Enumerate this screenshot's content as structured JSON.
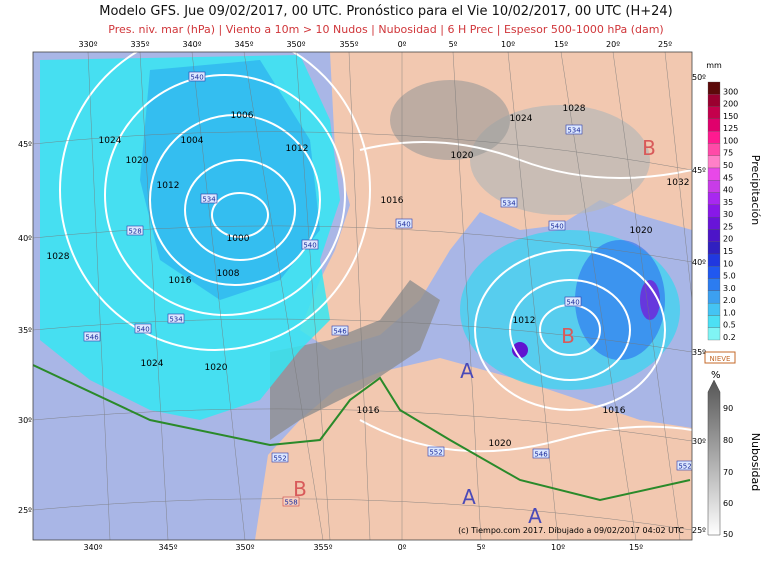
{
  "header": {
    "title": "Modelo GFS. Jue 09/02/2017, 00 UTC. Pronóstico para el Vie 10/02/2017, 00 UTC (H+24)",
    "subtitle": "Pres. niv. mar (hPa) | Viento a 10m > 10 Nudos | Nubosidad | 6 H Prec | Espesor 500-1000 hPa (dam)"
  },
  "map": {
    "top_longitudes": [
      "330º",
      "335º",
      "340º",
      "345º",
      "350º",
      "355º",
      "0º",
      "5º",
      "10º",
      "15º",
      "20º",
      "25º"
    ],
    "bottom_longitudes": [
      "340º",
      "345º",
      "350º",
      "355º",
      "0º",
      "5º",
      "10º",
      "15º"
    ],
    "left_latitudes": [
      "45º",
      "40º",
      "35º",
      "30º",
      "25º"
    ],
    "right_latitudes": [
      "50º",
      "45º",
      "40º",
      "35º",
      "30º",
      "25º"
    ],
    "isobar_labels": [
      "1024",
      "1020",
      "1012",
      "1004",
      "1006",
      "1012",
      "1000",
      "1008",
      "1016",
      "1028",
      "1024",
      "1020",
      "1016",
      "1020",
      "1024",
      "1028",
      "1032",
      "1020",
      "1012",
      "1016",
      "1016",
      "1020"
    ],
    "thickness_labels": [
      "540",
      "534",
      "528",
      "540",
      "534",
      "540",
      "546",
      "546",
      "540",
      "534",
      "534",
      "540",
      "540",
      "552",
      "552",
      "546",
      "558",
      "552"
    ],
    "centers": [
      "B",
      "A",
      "A",
      "A",
      "B",
      "B"
    ],
    "credit": "(c) Tiempo.com 2017. Dibujado a 09/02/2017 04:02 UTC"
  },
  "precip_legend": {
    "unit": "mm",
    "title": "Precipitación",
    "labels": [
      "300",
      "200",
      "150",
      "125",
      "100",
      "75",
      "50",
      "45",
      "40",
      "35",
      "30",
      "25",
      "20",
      "15",
      "10",
      "5.0",
      "3.0",
      "2.0",
      "1.0",
      "0.5",
      "0.2"
    ],
    "colors": [
      "#5c0a0a",
      "#9a0030",
      "#c4004c",
      "#e0006c",
      "#ff1a90",
      "#ff4aa8",
      "#ff80c8",
      "#e848e8",
      "#c83ce8",
      "#a828f0",
      "#8818e8",
      "#6814d8",
      "#4c14c8",
      "#3020c0",
      "#2038e0",
      "#2058f0",
      "#2c7cf0",
      "#3ca0f0",
      "#44c4f4",
      "#4ce0f4",
      "#80f4f4"
    ],
    "snow": "NIEVE"
  },
  "cloud_legend": {
    "unit": "%",
    "title": "Nubosidad",
    "labels": [
      "90",
      "80",
      "70",
      "60",
      "50"
    ]
  }
}
